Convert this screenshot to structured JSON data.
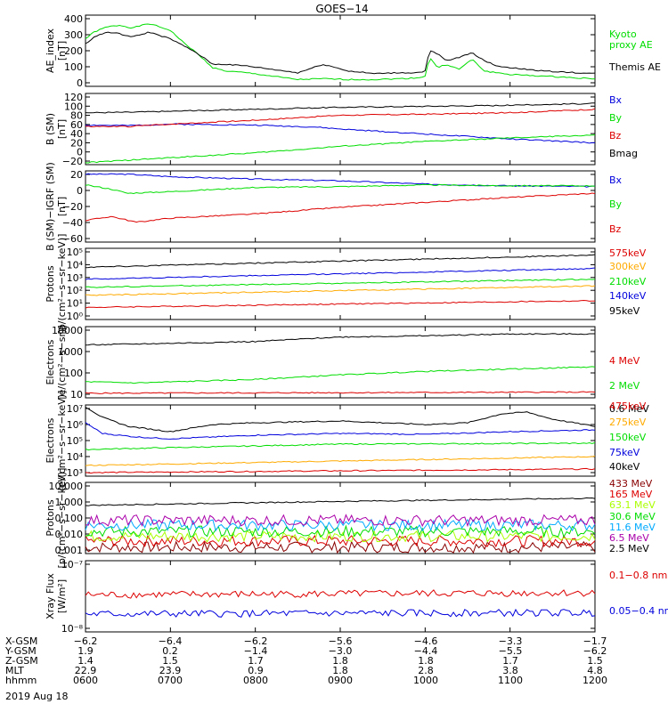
{
  "title": "GOES−14",
  "date": "2019 Aug 18",
  "colors": {
    "black": "#000000",
    "green": "#00dd00",
    "red": "#dd0000",
    "blue": "#0000dd",
    "orange": "#ffaa00",
    "cyan": "#00aaff",
    "lime": "#aaff00",
    "purple": "#aa00aa",
    "darkred": "#880000"
  },
  "ephemeris": {
    "labels": [
      "X-GSM",
      "Y-GSM",
      "Z-GSM",
      "MLT",
      "hhmm"
    ],
    "columns": [
      [
        "−6.2",
        "1.9",
        "1.4",
        "22.9",
        "0600"
      ],
      [
        "−6.4",
        "0.2",
        "1.5",
        "23.9",
        "0700"
      ],
      [
        "−6.2",
        "−1.4",
        "1.7",
        "0.9",
        "0800"
      ],
      [
        "−5.6",
        "−3.0",
        "1.8",
        "1.8",
        "0900"
      ],
      [
        "−4.6",
        "−4.4",
        "1.8",
        "2.8",
        "1000"
      ],
      [
        "−3.3",
        "−5.5",
        "1.7",
        "3.8",
        "1100"
      ],
      [
        "−1.7",
        "−6.2",
        "1.5",
        "4.8",
        "1200"
      ]
    ]
  },
  "chart_data": [
    {
      "type": "line",
      "ylabel": "AE_index\n[nT]",
      "xlim": [
        6,
        12
      ],
      "yticks": [
        "0",
        "100",
        "200",
        "300",
        "400"
      ],
      "ylim": [
        0,
        420
      ],
      "series": [
        {
          "name": "Kyoto\nproxy AE",
          "color": "#00dd00",
          "x": [
            6.0,
            6.1,
            6.25,
            6.4,
            6.55,
            6.75,
            7.0,
            7.15,
            7.3,
            7.5,
            7.65,
            7.9,
            8.2,
            8.5,
            8.8,
            9.1,
            9.4,
            9.7,
            9.9,
            10.0,
            10.05,
            10.15,
            10.25,
            10.4,
            10.55,
            10.7,
            10.85,
            11.0,
            11.2,
            11.4,
            11.6,
            11.8,
            12.0
          ],
          "y": [
            280,
            320,
            350,
            360,
            345,
            370,
            330,
            260,
            200,
            110,
            90,
            80,
            60,
            40,
            45,
            40,
            40,
            45,
            50,
            60,
            170,
            110,
            130,
            100,
            160,
            90,
            80,
            70,
            65,
            60,
            55,
            50,
            45
          ]
        },
        {
          "name": "Themis AE",
          "color": "#000000",
          "x": [
            6.0,
            6.1,
            6.25,
            6.4,
            6.55,
            6.75,
            7.0,
            7.15,
            7.3,
            7.5,
            7.65,
            7.9,
            8.2,
            8.5,
            8.8,
            9.1,
            9.4,
            9.7,
            9.9,
            10.0,
            10.05,
            10.15,
            10.25,
            10.4,
            10.55,
            10.7,
            10.85,
            11.0,
            11.2,
            11.4,
            11.6,
            11.8,
            12.0
          ],
          "y": [
            250,
            290,
            320,
            310,
            290,
            320,
            280,
            240,
            200,
            130,
            130,
            120,
            100,
            80,
            130,
            90,
            75,
            80,
            80,
            90,
            210,
            190,
            150,
            170,
            200,
            150,
            120,
            110,
            100,
            90,
            85,
            80,
            75
          ]
        }
      ]
    },
    {
      "type": "line",
      "ylabel": "B (SM)\n[nT]",
      "xlim": [
        6,
        12
      ],
      "yticks": [
        "−20",
        "0",
        "20",
        "40",
        "60",
        "80",
        "100",
        "120"
      ],
      "ylim": [
        -22,
        122
      ],
      "series": [
        {
          "name": "Bx",
          "color": "#0000dd",
          "x": [
            6,
            6.5,
            7,
            8,
            8.7,
            9,
            10,
            11,
            12
          ],
          "y": [
            58,
            57,
            60,
            58,
            54,
            50,
            40,
            30,
            22
          ]
        },
        {
          "name": "By",
          "color": "#00dd00",
          "x": [
            6,
            6.5,
            7,
            8,
            9,
            10,
            11,
            12
          ],
          "y": [
            -18,
            -13,
            -8,
            2,
            15,
            25,
            32,
            38
          ]
        },
        {
          "name": "Bz",
          "color": "#dd0000",
          "x": [
            6,
            6.5,
            7,
            8,
            9,
            10,
            11,
            12
          ],
          "y": [
            55,
            55,
            60,
            68,
            78,
            80,
            83,
            90
          ]
        },
        {
          "name": "Bmag",
          "color": "#000000",
          "x": [
            6,
            6.5,
            7,
            8,
            9,
            10,
            11,
            12
          ],
          "y": [
            83,
            84,
            86,
            90,
            94,
            96,
            98,
            102
          ]
        }
      ]
    },
    {
      "type": "line",
      "ylabel": "B (SM)−IGRF (SM)\n[nT]",
      "xlim": [
        6,
        12
      ],
      "yticks": [
        "−60",
        "−40",
        "−20",
        "0",
        "20"
      ],
      "ylim": [
        -64,
        22
      ],
      "series": [
        {
          "name": "Bx",
          "color": "#0000dd",
          "x": [
            6,
            6.5,
            7,
            8,
            9,
            10,
            11,
            12
          ],
          "y": [
            18,
            18,
            15,
            12,
            10,
            6,
            4,
            3
          ]
        },
        {
          "name": "By",
          "color": "#00dd00",
          "x": [
            6,
            6.3,
            6.5,
            7,
            8,
            9,
            10,
            11,
            12
          ],
          "y": [
            5,
            0,
            -5,
            -3,
            2,
            3,
            5,
            4,
            4
          ]
        },
        {
          "name": "Bz",
          "color": "#dd0000",
          "x": [
            6,
            6.3,
            6.6,
            7,
            8,
            9,
            10,
            11,
            12
          ],
          "y": [
            -38,
            -33,
            -40,
            -35,
            -30,
            -22,
            -16,
            -10,
            -5
          ]
        }
      ]
    },
    {
      "type": "line",
      "scale": "log",
      "ylabel": "Protons\n[p/(cm²−s−sr−keV)]",
      "xlim": [
        6,
        12
      ],
      "yticks": [
        "10⁰",
        "10¹",
        "10²",
        "10³",
        "10⁴",
        "10⁵"
      ],
      "ylim": [
        0,
        5.3
      ],
      "series": [
        {
          "name": "575keV",
          "color": "#dd0000",
          "x": [
            6,
            12
          ],
          "y": [
            0.9,
            1.4
          ]
        },
        {
          "name": "300keV",
          "color": "#ffaa00",
          "x": [
            6,
            12
          ],
          "y": [
            1.8,
            2.5
          ]
        },
        {
          "name": "210keV",
          "color": "#00dd00",
          "x": [
            6,
            12
          ],
          "y": [
            2.4,
            3.0
          ]
        },
        {
          "name": "140keV",
          "color": "#0000dd",
          "x": [
            6,
            12
          ],
          "y": [
            3.0,
            3.8
          ]
        },
        {
          "name": "95keV",
          "color": "#000000",
          "x": [
            6,
            12
          ],
          "y": [
            3.9,
            4.8
          ]
        }
      ]
    },
    {
      "type": "line",
      "scale": "log",
      "ylabel": "Electrons\n[e/(cm²−s−sr)]",
      "xlim": [
        6,
        12
      ],
      "yticks": [
        "10",
        "100",
        "1000",
        "10000"
      ],
      "ylim": [
        1,
        4.1
      ],
      "series": [
        {
          "name": "4 MeV",
          "color": "#dd0000",
          "x": [
            6,
            12
          ],
          "y": [
            1.2,
            1.25
          ]
        },
        {
          "name": "2 MeV",
          "color": "#00dd00",
          "x": [
            6,
            6.6,
            8,
            9,
            10,
            11,
            12
          ],
          "y": [
            1.7,
            1.65,
            1.8,
            2.0,
            2.15,
            2.25,
            2.35
          ]
        },
        {
          "name": "0.6 MeV",
          "color": "#000000",
          "x": [
            6,
            8,
            9,
            10,
            11,
            12
          ],
          "y": [
            3.3,
            3.45,
            3.65,
            3.7,
            3.78,
            3.78
          ]
        }
      ]
    },
    {
      "type": "line",
      "scale": "log",
      "ylabel": "Electrons\n[e/(cm²−s−sr−keV)]",
      "xlim": [
        6,
        12
      ],
      "yticks": [
        "10³",
        "10⁴",
        "10⁵",
        "10⁶",
        "10⁷"
      ],
      "ylim": [
        3,
        7
      ],
      "series": [
        {
          "name": "475keV",
          "color": "#dd0000",
          "x": [
            6,
            12
          ],
          "y": [
            3.2,
            3.4
          ]
        },
        {
          "name": "275keV",
          "color": "#ffaa00",
          "x": [
            6,
            12
          ],
          "y": [
            3.6,
            4.1
          ]
        },
        {
          "name": "150keV",
          "color": "#00dd00",
          "x": [
            6,
            7,
            9,
            12
          ],
          "y": [
            4.5,
            4.6,
            4.8,
            4.85
          ]
        },
        {
          "name": "75keV",
          "color": "#0000dd",
          "x": [
            6,
            6.2,
            6.6,
            7,
            8,
            9,
            10,
            11,
            12
          ],
          "y": [
            6.0,
            5.4,
            5.2,
            5.1,
            5.3,
            5.4,
            5.35,
            5.5,
            5.6
          ]
        },
        {
          "name": "40keV",
          "color": "#000000",
          "x": [
            6,
            6.2,
            6.5,
            7,
            7.5,
            8,
            9,
            9.5,
            10,
            10.5,
            10.9,
            11.2,
            11.5,
            12
          ],
          "y": [
            6.9,
            6.3,
            5.8,
            5.5,
            5.9,
            6.0,
            6.1,
            6.0,
            5.9,
            6.0,
            6.5,
            6.6,
            6.2,
            5.8
          ]
        }
      ]
    },
    {
      "type": "line",
      "scale": "log",
      "ylabel": "Protons\n[p/(cm²−s−sr−keV)]",
      "xlim": [
        6,
        12
      ],
      "yticks": [
        "0.001",
        "0.010",
        "0.100",
        "1.000",
        "10.000"
      ],
      "ylim": [
        -3,
        1.5
      ],
      "series": [
        {
          "name": "433 MeV",
          "color": "#880000",
          "x": [
            6,
            12
          ],
          "y": [
            -2.6,
            -2.6
          ]
        },
        {
          "name": "165 MeV",
          "color": "#dd0000",
          "x": [
            6,
            12
          ],
          "y": [
            -2.2,
            -2.2
          ]
        },
        {
          "name": "63.1 MeV",
          "color": "#aaff00",
          "x": [
            6,
            12
          ],
          "y": [
            -1.9,
            -1.9
          ]
        },
        {
          "name": "30.6 MeV",
          "color": "#00dd00",
          "x": [
            6,
            12
          ],
          "y": [
            -1.6,
            -1.6
          ]
        },
        {
          "name": "11.6 MeV",
          "color": "#00aaff",
          "x": [
            6,
            12
          ],
          "y": [
            -1.2,
            -1.2
          ]
        },
        {
          "name": "6.5 MeV",
          "color": "#aa00aa",
          "x": [
            6,
            12
          ],
          "y": [
            -0.9,
            -0.9
          ]
        },
        {
          "name": "2.5 MeV",
          "color": "#000000",
          "x": [
            6,
            9,
            12
          ],
          "y": [
            0.05,
            0.3,
            0.5
          ]
        }
      ]
    },
    {
      "type": "line",
      "scale": "log",
      "ylabel": "Xray Flux\n[W/m²]",
      "xlim": [
        6,
        12
      ],
      "yticks": [
        "10⁻⁸",
        "10⁻⁷"
      ],
      "ylim": [
        -8,
        -7
      ],
      "series": [
        {
          "name": "0.1−0.8 nm",
          "color": "#dd0000",
          "x": [
            6,
            12
          ],
          "y": [
            -7.48,
            -7.45
          ]
        },
        {
          "name": "0.05−0.4 nm",
          "color": "#0000dd",
          "x": [
            6,
            12
          ],
          "y": [
            -7.75,
            -7.73
          ]
        }
      ]
    }
  ]
}
